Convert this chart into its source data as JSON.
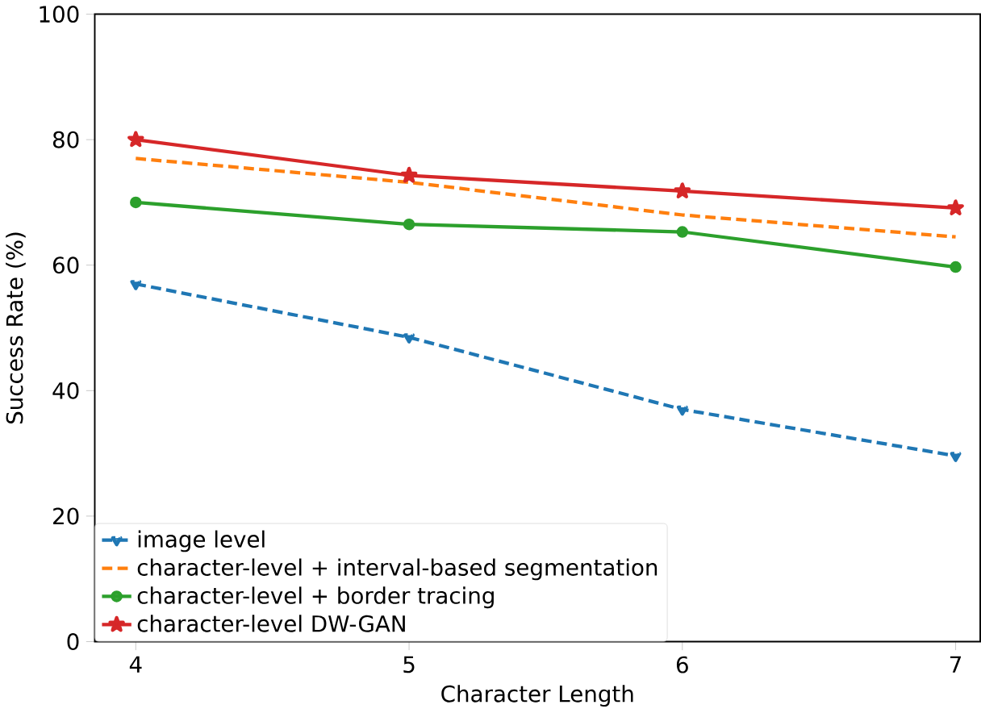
{
  "chart_data": {
    "type": "line",
    "xlabel": "Character Length",
    "ylabel": "Success Rate (%)",
    "x": [
      4,
      5,
      6,
      7
    ],
    "xlim": [
      3.85,
      7.09
    ],
    "xticks": [
      4,
      5,
      6,
      7
    ],
    "ylim": [
      0,
      100
    ],
    "yticks": [
      0,
      20,
      40,
      60,
      80,
      100
    ],
    "legend": "bottom left",
    "grid": false,
    "series": [
      {
        "name": "image level",
        "color": "#1f77b4",
        "values": [
          57.0,
          48.5,
          37.0,
          29.6
        ],
        "marker": "triangle",
        "line_style": "dashed"
      },
      {
        "name": "character-level + interval-based segmentation",
        "color": "#ff7f0e",
        "values": [
          77.0,
          73.2,
          68.0,
          64.5
        ],
        "marker": "none",
        "line_style": "dashed"
      },
      {
        "name": "character-level + border tracing",
        "color": "#2ca02c",
        "values": [
          70.0,
          66.5,
          65.3,
          59.7
        ],
        "marker": "circle",
        "line_style": "solid"
      },
      {
        "name": "character-level DW-GAN",
        "color": "#d62728",
        "values": [
          80.0,
          74.3,
          71.8,
          69.1
        ],
        "marker": "star",
        "line_style": "solid"
      }
    ]
  }
}
